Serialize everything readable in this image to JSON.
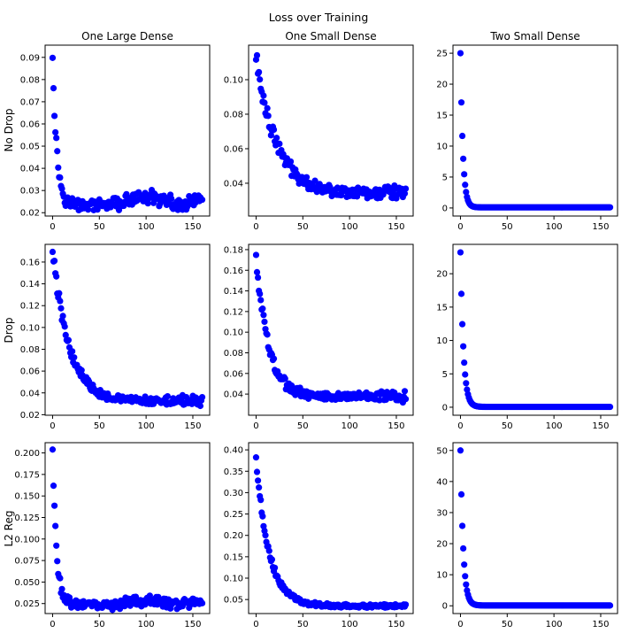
{
  "figure": {
    "title": "Loss over Training",
    "column_titles": [
      "One Large Dense",
      "One Small Dense",
      "Two Small Dense"
    ],
    "row_labels": [
      "No Drop",
      "Drop",
      "L2 Reg"
    ]
  },
  "chart_data": [
    {
      "type": "scatter",
      "title": "One Large Dense",
      "ylabel": "No Drop",
      "color": "#0000ff",
      "grid": false,
      "xlim": [
        -8,
        168
      ],
      "ylim": [
        0.0185,
        0.0955
      ],
      "xticks": [
        0,
        50,
        100,
        150
      ],
      "yticks": [
        0.02,
        0.03,
        0.04,
        0.05,
        0.06,
        0.07,
        0.08,
        0.09
      ],
      "ytick_labels": [
        "0.02",
        "0.03",
        "0.04",
        "0.05",
        "0.06",
        "0.07",
        "0.08",
        "0.09"
      ],
      "curve": {
        "y0": 0.092,
        "floor": 0.0235,
        "decay": 4.5,
        "noise": 0.0015,
        "tail_start": 60,
        "tail_amp": 0.009,
        "tail_noise": 0.005
      }
    },
    {
      "type": "scatter",
      "title": "One Small Dense",
      "ylabel": "",
      "color": "#0000ff",
      "grid": false,
      "xlim": [
        -8,
        168
      ],
      "ylim": [
        0.021,
        0.12
      ],
      "xticks": [
        0,
        50,
        100,
        150
      ],
      "yticks": [
        0.04,
        0.06,
        0.08,
        0.1
      ],
      "ytick_labels": [
        "0.04",
        "0.06",
        "0.08",
        "0.10"
      ],
      "curve": {
        "y0": 0.113,
        "floor": 0.034,
        "decay": 22,
        "noise": 0.0025,
        "tail_start": 130,
        "tail_amp": 0.006,
        "tail_noise": 0.007
      }
    },
    {
      "type": "scatter",
      "title": "Two Small Dense",
      "ylabel": "",
      "color": "#0000ff",
      "grid": false,
      "xlim": [
        -8,
        168
      ],
      "ylim": [
        -1.3,
        26.3
      ],
      "xticks": [
        0,
        50,
        100,
        150
      ],
      "yticks": [
        0,
        5,
        10,
        15,
        20,
        25
      ],
      "ytick_labels": [
        "0",
        "5",
        "10",
        "15",
        "20",
        "25"
      ],
      "curve": {
        "y0": 25,
        "floor": 0.1,
        "decay": 2.6,
        "noise": 0,
        "tail_start": 999,
        "tail_amp": 0,
        "tail_noise": 0
      }
    },
    {
      "type": "scatter",
      "title": "",
      "ylabel": "Drop",
      "color": "#0000ff",
      "grid": false,
      "xlim": [
        -8,
        168
      ],
      "ylim": [
        0.0195,
        0.1762
      ],
      "xticks": [
        0,
        50,
        100,
        150
      ],
      "yticks": [
        0.02,
        0.04,
        0.06,
        0.08,
        0.1,
        0.12,
        0.14,
        0.16
      ],
      "ytick_labels": [
        "0.02",
        "0.04",
        "0.06",
        "0.08",
        "0.10",
        "0.12",
        "0.14",
        "0.16"
      ],
      "curve": {
        "y0": 0.17,
        "floor": 0.032,
        "decay": 18,
        "noise": 0.003,
        "tail_start": 120,
        "tail_amp": 0.006,
        "tail_noise": 0.007
      }
    },
    {
      "type": "scatter",
      "title": "",
      "ylabel": "",
      "color": "#0000ff",
      "grid": false,
      "xlim": [
        -8,
        168
      ],
      "ylim": [
        0.0195,
        0.1851
      ],
      "xticks": [
        0,
        50,
        100,
        150
      ],
      "yticks": [
        0.04,
        0.06,
        0.08,
        0.1,
        0.12,
        0.14,
        0.16,
        0.18
      ],
      "ytick_labels": [
        "0.04",
        "0.06",
        "0.08",
        "0.10",
        "0.12",
        "0.14",
        "0.16",
        "0.18"
      ],
      "curve": {
        "y0": 0.175,
        "floor": 0.038,
        "decay": 13,
        "noise": 0.003,
        "tail_start": 120,
        "tail_amp": 0.004,
        "tail_noise": 0.008
      }
    },
    {
      "type": "scatter",
      "title": "",
      "ylabel": "",
      "color": "#0000ff",
      "grid": false,
      "xlim": [
        -8,
        168
      ],
      "ylim": [
        -1.2,
        24.4
      ],
      "xticks": [
        0,
        50,
        100,
        150
      ],
      "yticks": [
        0,
        5,
        10,
        15,
        20
      ],
      "ytick_labels": [
        "0",
        "5",
        "10",
        "15",
        "20"
      ],
      "curve": {
        "y0": 23.2,
        "floor": 0.05,
        "decay": 3.2,
        "noise": 0,
        "tail_start": 999,
        "tail_amp": 0,
        "tail_noise": 0
      }
    },
    {
      "type": "scatter",
      "title": "",
      "ylabel": "L2 Reg",
      "color": "#0000ff",
      "grid": false,
      "xlim": [
        -8,
        168
      ],
      "ylim": [
        0.0134,
        0.2119
      ],
      "xticks": [
        0,
        50,
        100,
        150
      ],
      "yticks": [
        0.025,
        0.05,
        0.075,
        0.1,
        0.125,
        0.15,
        0.175,
        0.2
      ],
      "ytick_labels": [
        "0.025",
        "0.050",
        "0.075",
        "0.100",
        "0.125",
        "0.150",
        "0.175",
        "0.200"
      ],
      "curve": {
        "y0": 0.203,
        "floor": 0.024,
        "decay": 4.0,
        "noise": 0.003,
        "tail_start": 60,
        "tail_amp": 0.012,
        "tail_noise": 0.008
      }
    },
    {
      "type": "scatter",
      "title": "",
      "ylabel": "",
      "color": "#0000ff",
      "grid": false,
      "xlim": [
        -8,
        168
      ],
      "ylim": [
        0.0172,
        0.4168
      ],
      "xticks": [
        0,
        50,
        100,
        150
      ],
      "yticks": [
        0.05,
        0.1,
        0.15,
        0.2,
        0.25,
        0.3,
        0.35,
        0.4
      ],
      "ytick_labels": [
        "0.05",
        "0.10",
        "0.15",
        "0.20",
        "0.25",
        "0.30",
        "0.35",
        "0.40"
      ],
      "curve": {
        "y0": 0.38,
        "floor": 0.035,
        "decay": 14,
        "noise": 0.004,
        "tail_start": 999,
        "tail_amp": 0,
        "tail_noise": 0.003
      }
    },
    {
      "type": "scatter",
      "title": "",
      "ylabel": "",
      "color": "#0000ff",
      "grid": false,
      "xlim": [
        -8,
        168
      ],
      "ylim": [
        -2.5,
        52.5
      ],
      "xticks": [
        0,
        50,
        100,
        150
      ],
      "yticks": [
        0,
        10,
        20,
        30,
        40,
        50
      ],
      "ytick_labels": [
        "0",
        "10",
        "20",
        "30",
        "40",
        "50"
      ],
      "curve": {
        "y0": 50,
        "floor": 0.1,
        "decay": 3.0,
        "noise": 0,
        "tail_start": 999,
        "tail_amp": 0,
        "tail_noise": 0
      }
    }
  ]
}
